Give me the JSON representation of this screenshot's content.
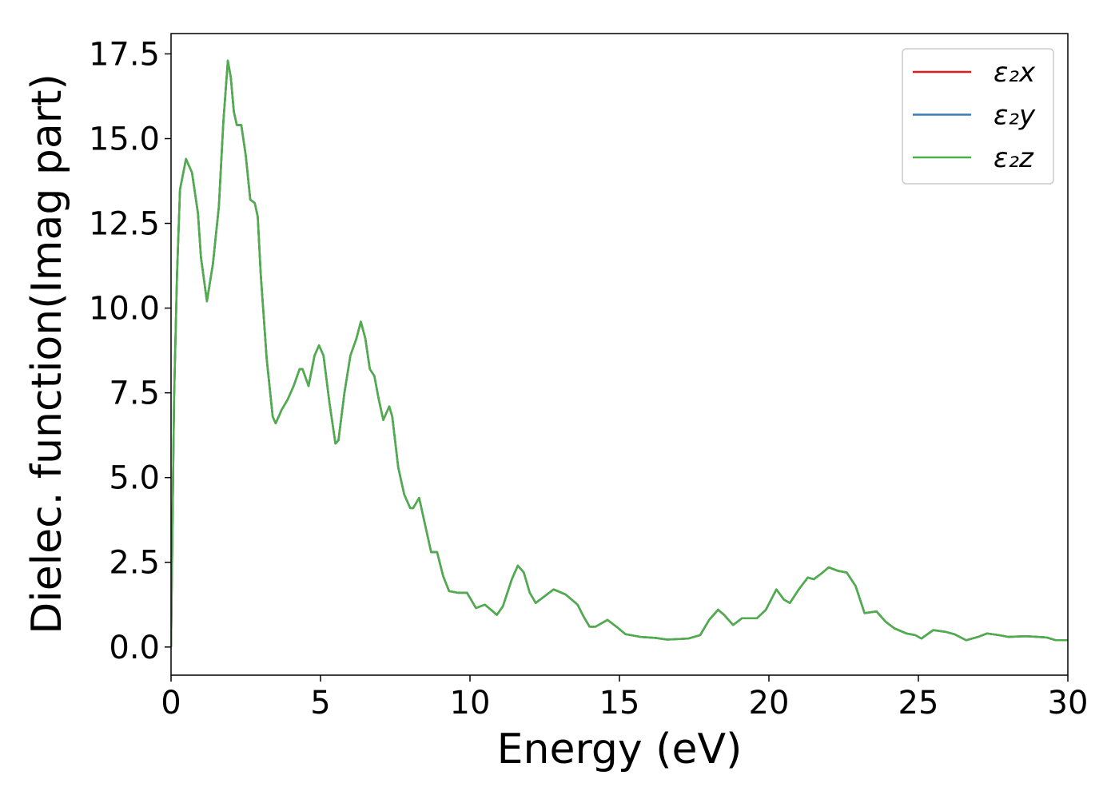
{
  "chart_data": {
    "type": "line",
    "xlabel": "Energy (eV)",
    "ylabel": "Dielec. function(Imag part)",
    "x": [
      0,
      0.1,
      0.2,
      0.3,
      0.5,
      0.7,
      0.9,
      1.0,
      1.2,
      1.4,
      1.6,
      1.75,
      1.9,
      2.0,
      2.1,
      2.2,
      2.35,
      2.5,
      2.65,
      2.8,
      2.9,
      3.0,
      3.2,
      3.4,
      3.5,
      3.7,
      3.9,
      4.1,
      4.3,
      4.4,
      4.6,
      4.8,
      4.95,
      5.1,
      5.3,
      5.5,
      5.6,
      5.8,
      6.0,
      6.2,
      6.35,
      6.5,
      6.65,
      6.8,
      6.95,
      7.1,
      7.3,
      7.4,
      7.6,
      7.8,
      8.0,
      8.1,
      8.3,
      8.5,
      8.7,
      8.9,
      9.1,
      9.3,
      9.6,
      9.9,
      10.2,
      10.5,
      10.9,
      11.1,
      11.4,
      11.6,
      11.8,
      12.0,
      12.2,
      12.5,
      12.8,
      13.2,
      13.6,
      13.8,
      14.0,
      14.2,
      14.6,
      14.9,
      15.2,
      15.7,
      16.2,
      16.6,
      17.3,
      17.7,
      18.0,
      18.3,
      18.5,
      18.8,
      19.1,
      19.6,
      19.9,
      20.25,
      20.5,
      20.7,
      21.0,
      21.3,
      21.5,
      21.8,
      22.0,
      22.3,
      22.6,
      22.9,
      23.2,
      23.6,
      23.9,
      24.2,
      24.6,
      24.9,
      25.1,
      25.5,
      25.9,
      26.2,
      26.6,
      27.0,
      27.3,
      27.7,
      28.0,
      28.6,
      29.0,
      29.3,
      29.6,
      30.0
    ],
    "series": [
      {
        "name": "ε₂x",
        "color": "#e41a1c",
        "values": [
          0,
          7.3,
          11,
          13.5,
          14.4,
          14.0,
          12.8,
          11.5,
          10.2,
          11.3,
          13.0,
          15.5,
          17.3,
          16.8,
          15.8,
          15.4,
          15.4,
          14.5,
          13.2,
          13.1,
          12.7,
          11.0,
          8.5,
          6.8,
          6.6,
          7.0,
          7.3,
          7.7,
          8.2,
          8.2,
          7.7,
          8.6,
          8.9,
          8.6,
          7.2,
          6.0,
          6.1,
          7.5,
          8.6,
          9.1,
          9.6,
          9.1,
          8.2,
          8.0,
          7.3,
          6.7,
          7.1,
          6.8,
          5.3,
          4.5,
          4.1,
          4.1,
          4.4,
          3.6,
          2.8,
          2.8,
          2.1,
          1.65,
          1.6,
          1.6,
          1.15,
          1.25,
          0.95,
          1.2,
          2.0,
          2.4,
          2.2,
          1.6,
          1.3,
          1.5,
          1.7,
          1.55,
          1.25,
          0.9,
          0.6,
          0.6,
          0.8,
          0.6,
          0.38,
          0.3,
          0.27,
          0.22,
          0.25,
          0.35,
          0.8,
          1.1,
          0.95,
          0.65,
          0.85,
          0.85,
          1.1,
          1.7,
          1.4,
          1.3,
          1.7,
          2.05,
          2.0,
          2.2,
          2.35,
          2.25,
          2.2,
          1.8,
          1.0,
          1.05,
          0.75,
          0.55,
          0.4,
          0.35,
          0.25,
          0.5,
          0.45,
          0.38,
          0.2,
          0.3,
          0.4,
          0.35,
          0.3,
          0.32,
          0.3,
          0.28,
          0.2,
          0.2
        ]
      },
      {
        "name": "ε₂y",
        "color": "#377eb8",
        "values": [
          0,
          7.3,
          11,
          13.5,
          14.4,
          14.0,
          12.8,
          11.5,
          10.2,
          11.3,
          13.0,
          15.5,
          17.3,
          16.8,
          15.8,
          15.4,
          15.4,
          14.5,
          13.2,
          13.1,
          12.7,
          11.0,
          8.5,
          6.8,
          6.6,
          7.0,
          7.3,
          7.7,
          8.2,
          8.2,
          7.7,
          8.6,
          8.9,
          8.6,
          7.2,
          6.0,
          6.1,
          7.5,
          8.6,
          9.1,
          9.6,
          9.1,
          8.2,
          8.0,
          7.3,
          6.7,
          7.1,
          6.8,
          5.3,
          4.5,
          4.1,
          4.1,
          4.4,
          3.6,
          2.8,
          2.8,
          2.1,
          1.65,
          1.6,
          1.6,
          1.15,
          1.25,
          0.95,
          1.2,
          2.0,
          2.4,
          2.2,
          1.6,
          1.3,
          1.5,
          1.7,
          1.55,
          1.25,
          0.9,
          0.6,
          0.6,
          0.8,
          0.6,
          0.38,
          0.3,
          0.27,
          0.22,
          0.25,
          0.35,
          0.8,
          1.1,
          0.95,
          0.65,
          0.85,
          0.85,
          1.1,
          1.7,
          1.4,
          1.3,
          1.7,
          2.05,
          2.0,
          2.2,
          2.35,
          2.25,
          2.2,
          1.8,
          1.0,
          1.05,
          0.75,
          0.55,
          0.4,
          0.35,
          0.25,
          0.5,
          0.45,
          0.38,
          0.2,
          0.3,
          0.4,
          0.35,
          0.3,
          0.32,
          0.3,
          0.28,
          0.2,
          0.2
        ]
      },
      {
        "name": "ε₂z",
        "color": "#4daf4a",
        "values": [
          0,
          7.3,
          11,
          13.5,
          14.4,
          14.0,
          12.8,
          11.5,
          10.2,
          11.3,
          13.0,
          15.5,
          17.3,
          16.8,
          15.8,
          15.4,
          15.4,
          14.5,
          13.2,
          13.1,
          12.7,
          11.0,
          8.5,
          6.8,
          6.6,
          7.0,
          7.3,
          7.7,
          8.2,
          8.2,
          7.7,
          8.6,
          8.9,
          8.6,
          7.2,
          6.0,
          6.1,
          7.5,
          8.6,
          9.1,
          9.6,
          9.1,
          8.2,
          8.0,
          7.3,
          6.7,
          7.1,
          6.8,
          5.3,
          4.5,
          4.1,
          4.1,
          4.4,
          3.6,
          2.8,
          2.8,
          2.1,
          1.65,
          1.6,
          1.6,
          1.15,
          1.25,
          0.95,
          1.2,
          2.0,
          2.4,
          2.2,
          1.6,
          1.3,
          1.5,
          1.7,
          1.55,
          1.25,
          0.9,
          0.6,
          0.6,
          0.8,
          0.6,
          0.38,
          0.3,
          0.27,
          0.22,
          0.25,
          0.35,
          0.8,
          1.1,
          0.95,
          0.65,
          0.85,
          0.85,
          1.1,
          1.7,
          1.4,
          1.3,
          1.7,
          2.05,
          2.0,
          2.2,
          2.35,
          2.25,
          2.2,
          1.8,
          1.0,
          1.05,
          0.75,
          0.55,
          0.4,
          0.35,
          0.25,
          0.5,
          0.45,
          0.38,
          0.2,
          0.3,
          0.4,
          0.35,
          0.3,
          0.32,
          0.3,
          0.28,
          0.2,
          0.2
        ]
      }
    ],
    "xlim": [
      0,
      30
    ],
    "xticks": [
      0,
      5,
      10,
      15,
      20,
      25,
      30
    ],
    "ylim": [
      -0.83,
      18.1
    ],
    "yticks": [
      {
        "value": 0,
        "label": "0.0"
      },
      2.5,
      {
        "value": 5,
        "label": "5.0"
      },
      7.5,
      {
        "value": 10,
        "label": "10.0"
      },
      12.5,
      {
        "value": 15,
        "label": "15.0"
      },
      17.5
    ],
    "legend": "upper right",
    "grid": false
  }
}
